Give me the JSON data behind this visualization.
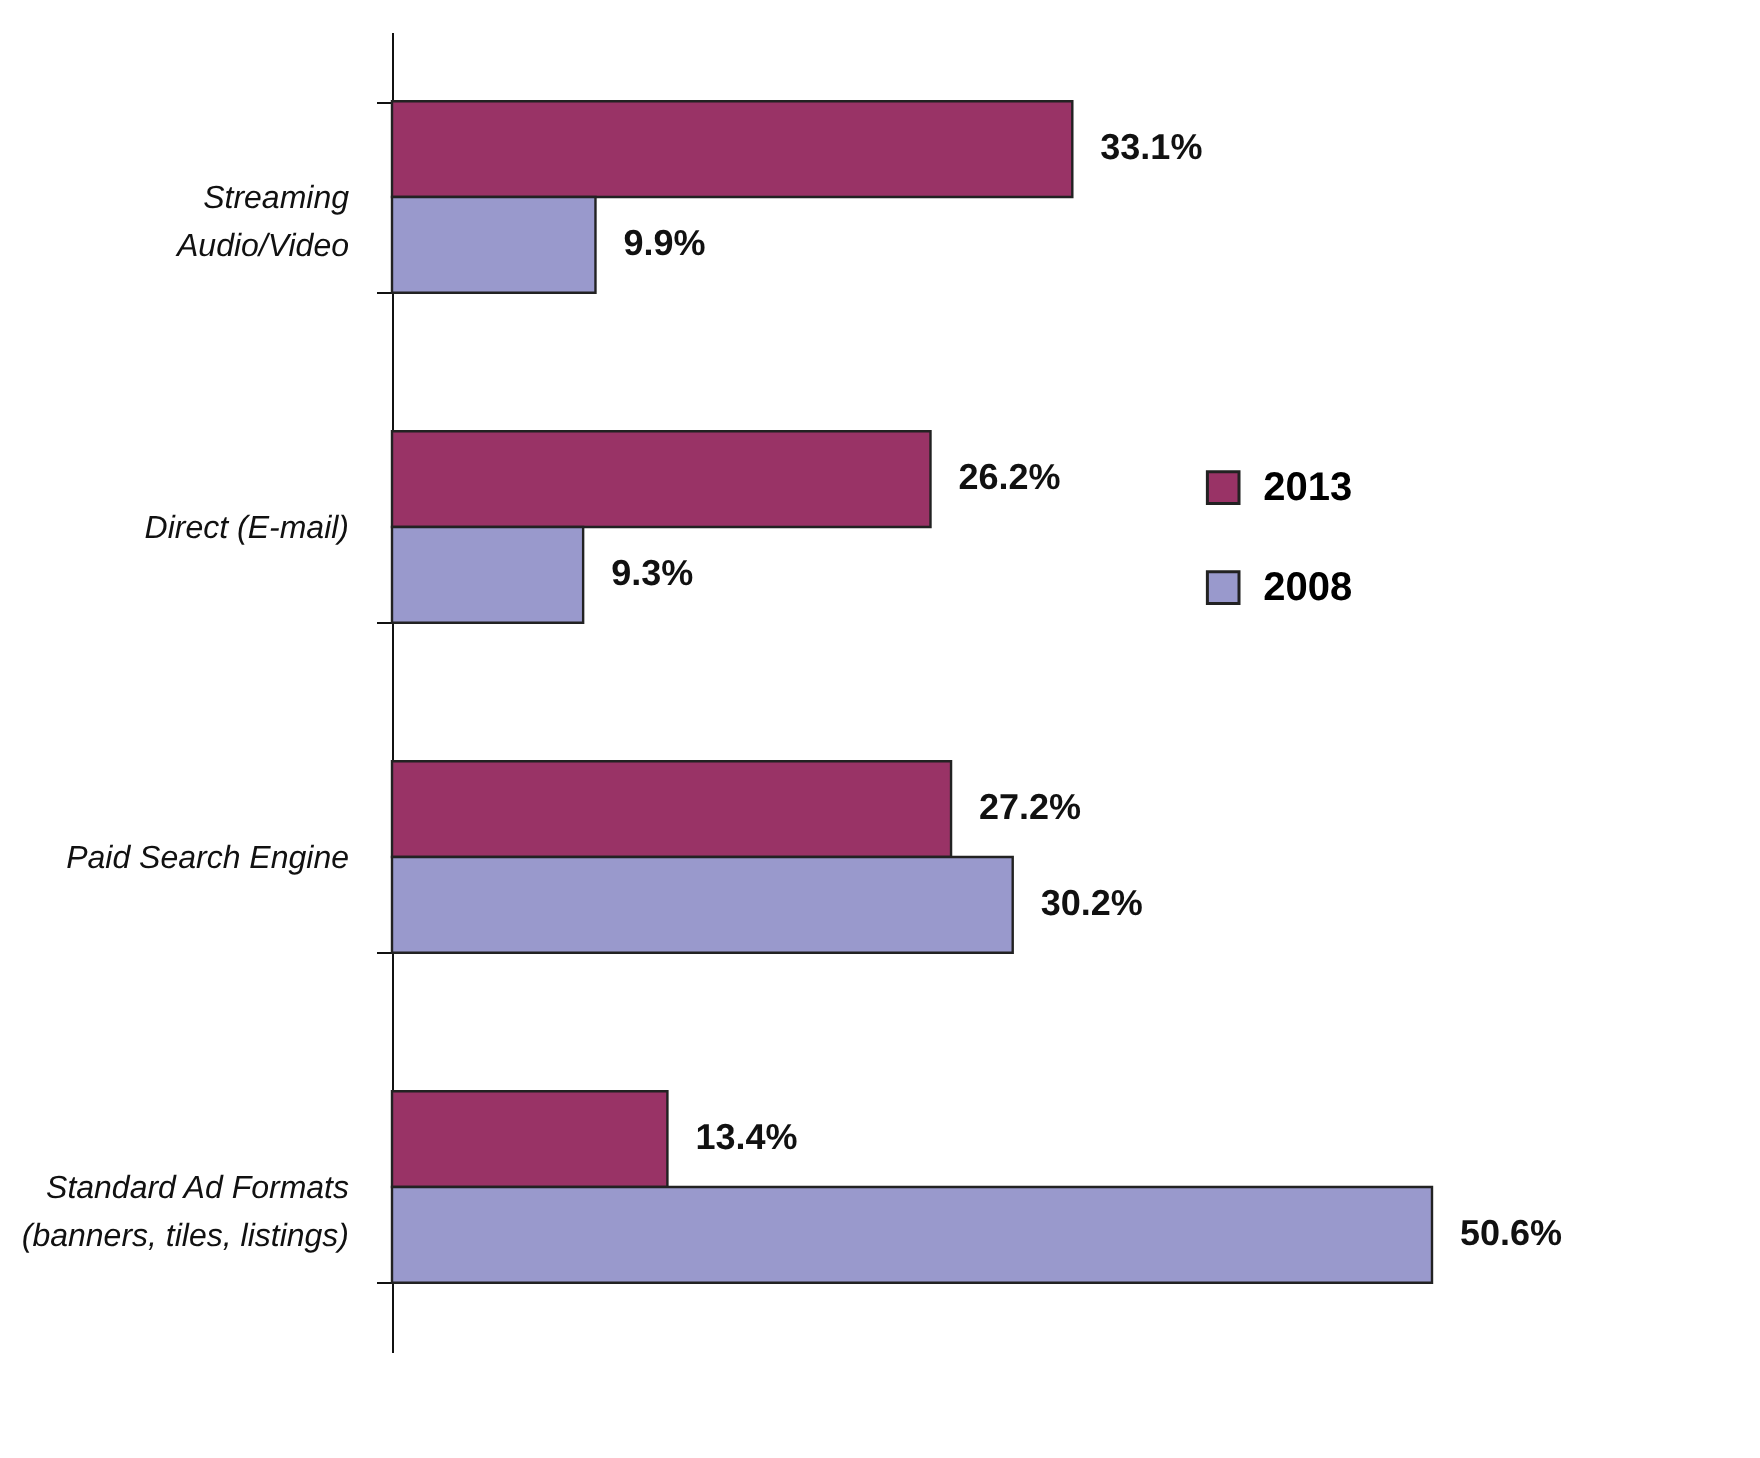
{
  "chart_data": {
    "type": "bar",
    "orientation": "horizontal",
    "categories": [
      "Streaming Audio/Video",
      "Direct (E-mail)",
      "Paid Search Engine",
      "Standard Ad Formats (banners, tiles, listings)"
    ],
    "series": [
      {
        "name": "2013",
        "color": "#993366",
        "values": [
          33.1,
          26.2,
          27.2,
          13.4
        ],
        "value_labels": [
          "33.1%",
          "26.2%",
          "27.2%",
          "13.4%"
        ]
      },
      {
        "name": "2008",
        "color": "#9999cc",
        "values": [
          9.9,
          9.3,
          30.2,
          50.6
        ],
        "value_labels": [
          "9.9%",
          "9.3%",
          "30.2%",
          "50.6%"
        ]
      }
    ],
    "legend": "right"
  }
}
